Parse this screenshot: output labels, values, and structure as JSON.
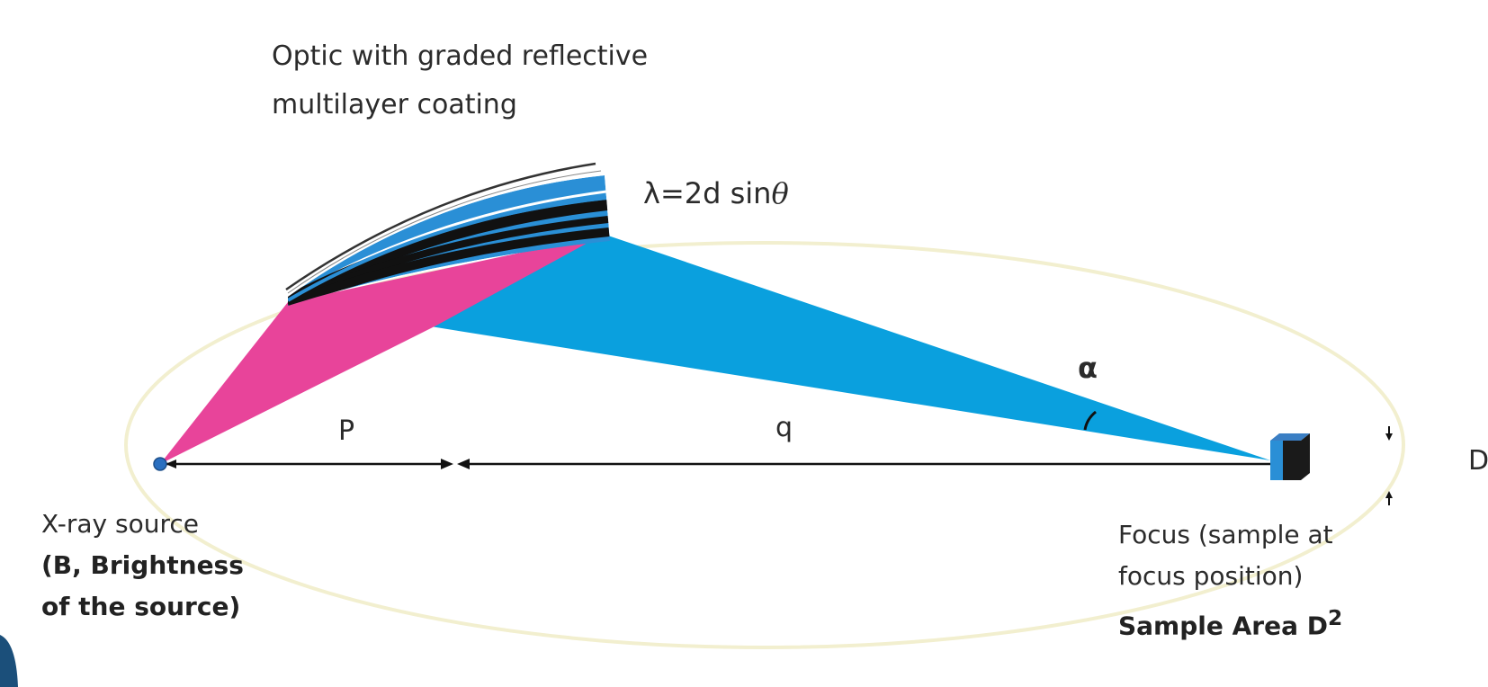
{
  "diagram": {
    "optic_label": [
      "Optic with graded reflective",
      "multilayer coating"
    ],
    "formula": {
      "prefix": "λ=2d sin",
      "theta": "θ"
    },
    "distance_p": "P",
    "distance_q": "q",
    "angle": "α",
    "size": "D",
    "source_label": {
      "line1": "X-ray source",
      "line2": "(B, Brightness",
      "line3": "of the source)"
    },
    "focus_label": {
      "line1": "Focus (sample at",
      "line2": "focus position)",
      "line3_prefix": "Sample Area D",
      "line3_sup": "2"
    },
    "colors": {
      "incident_beam": "#e8449a",
      "reflected_beam": "#0aa0de",
      "coating_blue": "#2a8fd6",
      "coating_black": "#111111",
      "ellipse": "#f2efcf",
      "source": "#2a6fc0"
    }
  }
}
